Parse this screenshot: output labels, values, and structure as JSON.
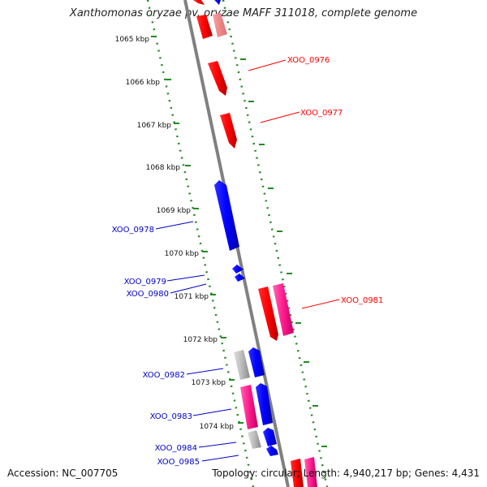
{
  "title": "Xanthomonas oryzae pv. oryzae MAFF 311018, complete genome",
  "footer": {
    "accession": "Accession: NC_007705",
    "topology": "Topology: circular; Length: 4,940,217 bp; Genes: 4,431"
  },
  "colors": {
    "forward_gene": "#ff0000",
    "forward_gene_light": "#f08080",
    "reverse_gene": "#0000ff",
    "pink_gene": "#ff3399",
    "gray_gene": "#bbbbbb",
    "backbone": "#808080",
    "ruler": "#228B22",
    "forward_label": "#ff0000",
    "reverse_label": "#0000cc"
  },
  "ruler_ticks": [
    "1065 kbp",
    "1066 kbp",
    "1067 kbp",
    "1068 kbp",
    "1069 kbp",
    "1070 kbp",
    "1071 kbp",
    "1072 kbp",
    "1073 kbp",
    "1074 kbp"
  ],
  "gene_labels": {
    "forward": [
      "XOO_0976",
      "XOO_0977",
      "XOO_0981"
    ],
    "reverse": [
      "XOO_0978",
      "XOO_0979",
      "XOO_0980",
      "XOO_0982",
      "XOO_0983",
      "XOO_0984",
      "XOO_0985"
    ]
  }
}
